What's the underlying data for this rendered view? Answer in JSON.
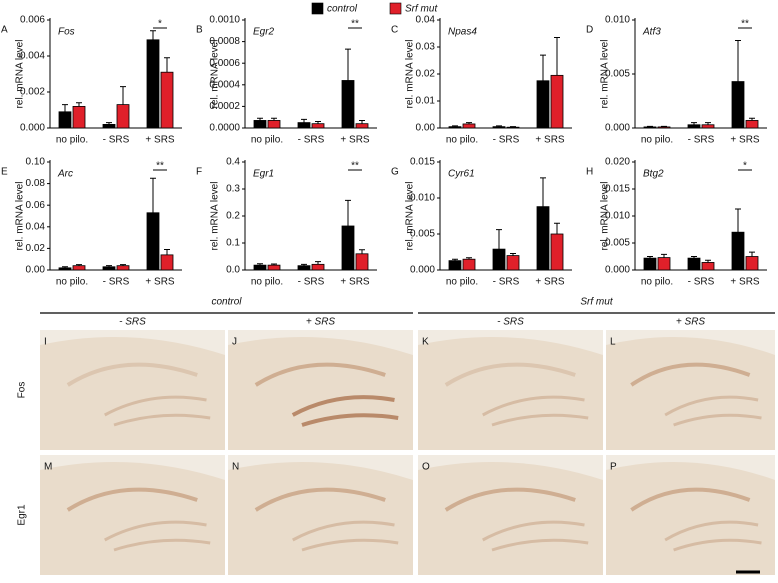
{
  "chart_data": [
    {
      "type": "bar",
      "panel": "A",
      "title": "Fos",
      "ylabel": "rel. mRNA level",
      "categories": [
        "no pilo.",
        "- SRS",
        "+ SRS"
      ],
      "ylim": [
        0,
        0.006
      ],
      "yticks": [
        {
          "value": 0,
          "label": "0.000"
        },
        0.002,
        0.004,
        0.006
      ],
      "series": [
        {
          "name": "control",
          "color": "#000000",
          "values": [
            0.0009,
            0.0002,
            0.0049
          ],
          "errors": [
            0.0004,
            0.0001,
            0.0005
          ]
        },
        {
          "name": "Srf mut",
          "color": "#e0202a",
          "values": [
            0.0012,
            0.0013,
            0.0031
          ],
          "errors": [
            0.0002,
            0.001,
            0.0008
          ]
        }
      ],
      "significance": "*"
    },
    {
      "type": "bar",
      "panel": "B",
      "title": "Egr2",
      "ylabel": "rel. mRNA level",
      "categories": [
        "no pilo.",
        "- SRS",
        "+ SRS"
      ],
      "ylim": [
        0,
        0.001
      ],
      "yticks": [
        {
          "value": 0,
          "label": "0.0000"
        },
        {
          "value": 0.0002,
          "label": "0.0002"
        },
        {
          "value": 0.0004,
          "label": "0.0004"
        },
        {
          "value": 0.0006,
          "label": "0.0006"
        },
        {
          "value": 0.0008,
          "label": "0.0008"
        },
        {
          "value": 0.001,
          "label": "0.0010"
        }
      ],
      "series": [
        {
          "name": "control",
          "color": "#000000",
          "values": [
            7e-05,
            5e-05,
            0.00044
          ],
          "errors": [
            2e-05,
            3e-05,
            0.00029
          ]
        },
        {
          "name": "Srf mut",
          "color": "#e0202a",
          "values": [
            7e-05,
            4e-05,
            4e-05
          ],
          "errors": [
            2e-05,
            2e-05,
            3e-05
          ]
        }
      ],
      "significance": "**"
    },
    {
      "type": "bar",
      "panel": "C",
      "title": "Npas4",
      "ylabel": "rel. mRNA level",
      "categories": [
        "no pilo.",
        "- SRS",
        "+ SRS"
      ],
      "ylim": [
        0,
        0.04
      ],
      "yticks": [
        {
          "value": 0,
          "label": "0.00"
        },
        0.01,
        0.02,
        0.03,
        0.04
      ],
      "series": [
        {
          "name": "control",
          "color": "#000000",
          "values": [
            0.0005,
            0.0005,
            0.0175
          ],
          "errors": [
            0.0003,
            0.0003,
            0.0095
          ]
        },
        {
          "name": "Srf mut",
          "color": "#e0202a",
          "values": [
            0.0015,
            0.0003,
            0.0195
          ],
          "errors": [
            0.0005,
            0.0002,
            0.014
          ]
        }
      ]
    },
    {
      "type": "bar",
      "panel": "D",
      "title": "Atf3",
      "ylabel": "rel. mRNA level",
      "categories": [
        "no pilo.",
        "- SRS",
        "+ SRS"
      ],
      "ylim": [
        0,
        0.01
      ],
      "yticks": [
        {
          "value": 0,
          "label": "0.000"
        },
        0.005,
        {
          "value": 0.01,
          "label": "0.010"
        }
      ],
      "series": [
        {
          "name": "control",
          "color": "#000000",
          "values": [
            0.0001,
            0.0003,
            0.0043
          ],
          "errors": [
            5e-05,
            0.0002,
            0.0038
          ]
        },
        {
          "name": "Srf mut",
          "color": "#e0202a",
          "values": [
            0.0001,
            0.0003,
            0.0007
          ],
          "errors": [
            5e-05,
            0.0002,
            0.0002
          ]
        }
      ],
      "significance": "**"
    },
    {
      "type": "bar",
      "panel": "E",
      "title": "Arc",
      "ylabel": "rel. mRNA level",
      "categories": [
        "no pilo.",
        "- SRS",
        "+ SRS"
      ],
      "ylim": [
        0,
        0.1
      ],
      "yticks": [
        {
          "value": 0,
          "label": "0.00"
        },
        0.02,
        0.04,
        0.06,
        0.08,
        {
          "value": 0.1,
          "label": "0.10"
        }
      ],
      "series": [
        {
          "name": "control",
          "color": "#000000",
          "values": [
            0.002,
            0.003,
            0.053
          ],
          "errors": [
            0.001,
            0.001,
            0.032
          ]
        },
        {
          "name": "Srf mut",
          "color": "#e0202a",
          "values": [
            0.004,
            0.004,
            0.014
          ],
          "errors": [
            0.001,
            0.001,
            0.005
          ]
        }
      ],
      "significance": "**"
    },
    {
      "type": "bar",
      "panel": "F",
      "title": "Egr1",
      "ylabel": "rel. mRNA level",
      "categories": [
        "no pilo.",
        "- SRS",
        "+ SRS"
      ],
      "ylim": [
        0,
        0.4
      ],
      "yticks": [
        {
          "value": 0,
          "label": "0.0"
        },
        0.1,
        0.2,
        0.3,
        0.4
      ],
      "series": [
        {
          "name": "control",
          "color": "#000000",
          "values": [
            0.018,
            0.016,
            0.163
          ],
          "errors": [
            0.005,
            0.005,
            0.095
          ]
        },
        {
          "name": "Srf mut",
          "color": "#e0202a",
          "values": [
            0.018,
            0.021,
            0.06
          ],
          "errors": [
            0.004,
            0.01,
            0.015
          ]
        }
      ],
      "significance": "**"
    },
    {
      "type": "bar",
      "panel": "G",
      "title": "Cyr61",
      "ylabel": "rel. mRNA level",
      "categories": [
        "no pilo.",
        "- SRS",
        "+ SRS"
      ],
      "ylim": [
        0,
        0.015
      ],
      "yticks": [
        {
          "value": 0,
          "label": "0.000"
        },
        0.005,
        {
          "value": 0.01,
          "label": "0.010"
        },
        0.015
      ],
      "series": [
        {
          "name": "control",
          "color": "#000000",
          "values": [
            0.0013,
            0.0029,
            0.0088
          ],
          "errors": [
            0.0002,
            0.0027,
            0.004
          ]
        },
        {
          "name": "Srf mut",
          "color": "#e0202a",
          "values": [
            0.0015,
            0.002,
            0.005
          ],
          "errors": [
            0.0002,
            0.0003,
            0.0015
          ]
        }
      ]
    },
    {
      "type": "bar",
      "panel": "H",
      "title": "Btg2",
      "ylabel": "rel. mRNA level",
      "categories": [
        "no pilo.",
        "- SRS",
        "+ SRS"
      ],
      "ylim": [
        0,
        0.02
      ],
      "yticks": [
        {
          "value": 0,
          "label": "0.000"
        },
        0.005,
        {
          "value": 0.01,
          "label": "0.010"
        },
        0.015,
        {
          "value": 0.02,
          "label": "0.020"
        }
      ],
      "series": [
        {
          "name": "control",
          "color": "#000000",
          "values": [
            0.0022,
            0.0022,
            0.007
          ],
          "errors": [
            0.0003,
            0.0003,
            0.0043
          ]
        },
        {
          "name": "Srf mut",
          "color": "#e0202a",
          "values": [
            0.0023,
            0.0014,
            0.0025
          ],
          "errors": [
            0.0006,
            0.0004,
            0.0008
          ]
        }
      ],
      "significance": "*"
    }
  ],
  "histology": {
    "groups": [
      {
        "label": "control",
        "conditions": [
          "- SRS",
          "+ SRS"
        ]
      },
      {
        "label": "Srf mut",
        "conditions": [
          "- SRS",
          "+ SRS"
        ]
      }
    ],
    "rows": [
      {
        "label": "Fos",
        "panels": [
          "I",
          "J",
          "K",
          "L"
        ]
      },
      {
        "label": "Egr1",
        "panels": [
          "M",
          "N",
          "O",
          "P"
        ]
      }
    ]
  }
}
